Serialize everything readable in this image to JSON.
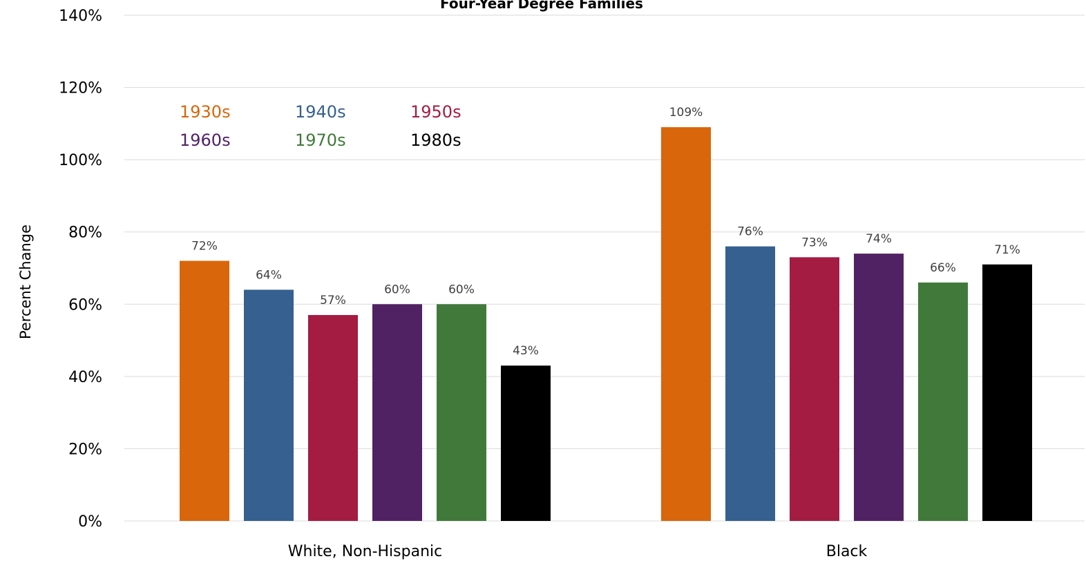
{
  "chart_data": {
    "type": "bar",
    "title": "Four-Year Degree Families",
    "xlabel": "",
    "ylabel": "Percent Change",
    "categories": [
      "White, Non-Hispanic",
      "Black"
    ],
    "series": [
      {
        "name": "1930s",
        "color": "#d9660a",
        "values": [
          72,
          109
        ]
      },
      {
        "name": "1940s",
        "color": "#35608f",
        "values": [
          64,
          76
        ]
      },
      {
        "name": "1950s",
        "color": "#a51c42",
        "values": [
          57,
          73
        ]
      },
      {
        "name": "1960s",
        "color": "#512263",
        "values": [
          60,
          74
        ]
      },
      {
        "name": "1970s",
        "color": "#41793a",
        "values": [
          60,
          66
        ]
      },
      {
        "name": "1980s",
        "color": "#000000",
        "values": [
          43,
          71
        ]
      }
    ],
    "data_labels": [
      [
        "72%",
        "109%"
      ],
      [
        "64%",
        "76%"
      ],
      [
        "57%",
        "73%"
      ],
      [
        "60%",
        "74%"
      ],
      [
        "60%",
        "66%"
      ],
      [
        "43%",
        "71%"
      ]
    ],
    "ylim": [
      0,
      140
    ],
    "yticks": [
      "0%",
      "20%",
      "40%",
      "60%",
      "80%",
      "100%",
      "120%",
      "140%"
    ],
    "ytick_values": [
      0,
      20,
      40,
      60,
      80,
      100,
      120,
      140
    ],
    "grid": true,
    "legend_placement": "top-left"
  }
}
